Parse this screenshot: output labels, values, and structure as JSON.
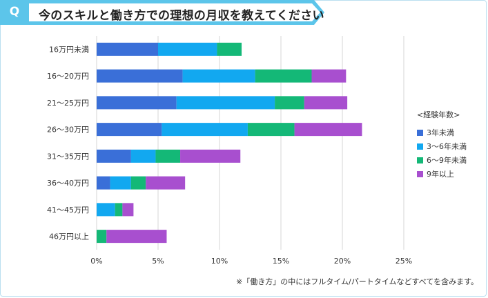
{
  "header": {
    "badge": "Q",
    "question": "今のスキルと働き方での理想の月収を教えてください",
    "accent_color": "#5cc5ea"
  },
  "chart_data": {
    "type": "bar",
    "orientation": "horizontal",
    "stacked": true,
    "categories": [
      "16万円未満",
      "16〜20万円",
      "21〜25万円",
      "26〜30万円",
      "31〜35万円",
      "36〜40万円",
      "41〜45万円",
      "46万円以上"
    ],
    "series": [
      {
        "name": "3年未満",
        "color": "#3a6fd8",
        "values": [
          5.0,
          7.0,
          6.5,
          5.3,
          2.8,
          1.1,
          0.0,
          0.0
        ]
      },
      {
        "name": "3〜6年未満",
        "color": "#12a8f0",
        "values": [
          4.8,
          5.9,
          8.0,
          7.0,
          2.0,
          1.7,
          1.5,
          0.0
        ]
      },
      {
        "name": "6〜9年未満",
        "color": "#14b877",
        "values": [
          2.0,
          4.6,
          2.4,
          3.8,
          2.0,
          1.2,
          0.6,
          0.8
        ]
      },
      {
        "name": "9年以上",
        "color": "#a84fcf",
        "values": [
          0.0,
          2.8,
          3.5,
          5.5,
          4.9,
          3.2,
          0.9,
          4.9
        ]
      }
    ],
    "xlim": [
      0,
      25
    ],
    "xticks": [
      "0%",
      "5%",
      "10%",
      "15%",
      "20%",
      "25%"
    ],
    "xtick_values": [
      0,
      5,
      10,
      15,
      20,
      25
    ],
    "legend_title": "<経験年数>",
    "legend_position": "right",
    "grid": true
  },
  "footnote": "※「働き方」の中にはフルタイム/パートタイムなどすべてを含みます。"
}
